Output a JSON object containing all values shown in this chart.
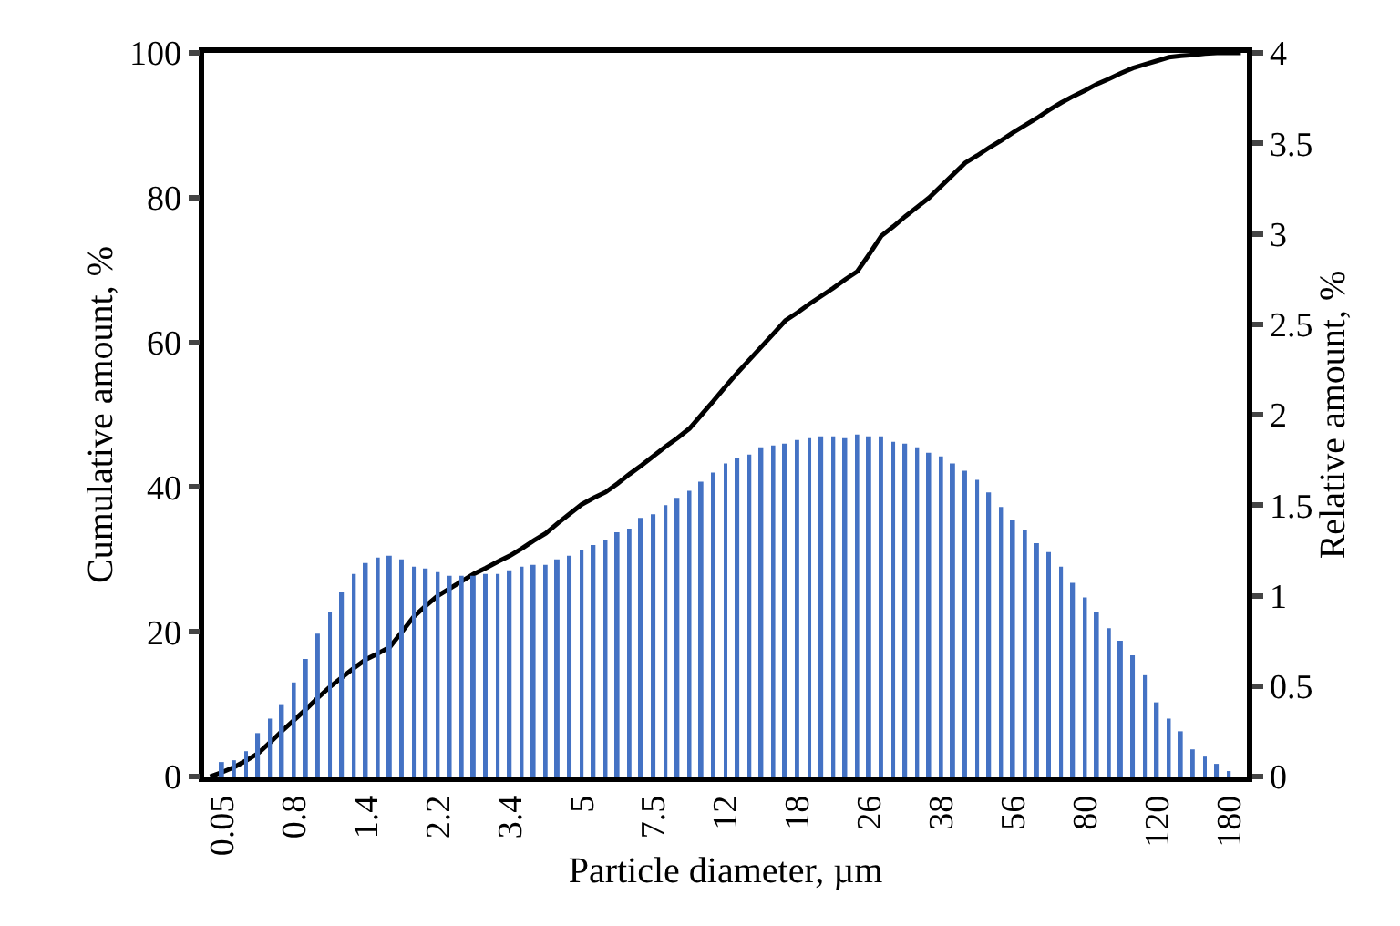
{
  "chart_data": {
    "type": "bar",
    "xlabel": "Particle diameter, µm",
    "ylabel": "Cumulative amount, %",
    "y2label": "Relative amount, %",
    "categories": [
      null,
      "0.05",
      null,
      null,
      null,
      null,
      null,
      "0.8",
      null,
      null,
      null,
      null,
      null,
      "1.4",
      null,
      null,
      null,
      null,
      null,
      "2.2",
      null,
      null,
      null,
      null,
      null,
      "3.4",
      null,
      null,
      null,
      null,
      null,
      "5",
      null,
      null,
      null,
      null,
      null,
      "7.5",
      null,
      null,
      null,
      null,
      null,
      "12",
      null,
      null,
      null,
      null,
      null,
      "18",
      null,
      null,
      null,
      null,
      null,
      "26",
      null,
      null,
      null,
      null,
      null,
      "38",
      null,
      null,
      null,
      null,
      null,
      "56",
      null,
      null,
      null,
      null,
      null,
      "80",
      null,
      null,
      null,
      null,
      null,
      "120",
      null,
      null,
      null,
      null,
      null,
      "180",
      null
    ],
    "series": [
      {
        "axis": "y2",
        "color": "#4472c4",
        "values": [
          0,
          0.08,
          0.09,
          0.14,
          0.24,
          0.32,
          0.4,
          0.52,
          0.65,
          0.79,
          0.91,
          1.02,
          1.12,
          1.18,
          1.21,
          1.22,
          1.2,
          1.16,
          1.15,
          1.13,
          1.11,
          1.11,
          1.11,
          1.12,
          1.12,
          1.14,
          1.16,
          1.17,
          1.17,
          1.2,
          1.22,
          1.25,
          1.28,
          1.31,
          1.35,
          1.37,
          1.43,
          1.45,
          1.5,
          1.54,
          1.58,
          1.63,
          1.68,
          1.73,
          1.76,
          1.78,
          1.82,
          1.83,
          1.84,
          1.86,
          1.87,
          1.88,
          1.88,
          1.87,
          1.89,
          1.88,
          1.88,
          1.85,
          1.84,
          1.82,
          1.79,
          1.77,
          1.73,
          1.69,
          1.64,
          1.57,
          1.49,
          1.42,
          1.36,
          1.29,
          1.24,
          1.16,
          1.07,
          0.99,
          0.91,
          0.82,
          0.75,
          0.67,
          0.56,
          0.41,
          0.32,
          0.25,
          0.15,
          0.11,
          0.07,
          0.03,
          0
        ]
      },
      {
        "type": "line",
        "axis": "y",
        "color": "#000000",
        "values": [
          0,
          0.6,
          1.3,
          2.2,
          3.2,
          4.7,
          6.3,
          7.8,
          9.3,
          10.9,
          12.4,
          13.7,
          15.0,
          16.2,
          17.0,
          17.9,
          20.0,
          22.1,
          23.6,
          25.0,
          26.0,
          27.0,
          28.0,
          28.8,
          29.7,
          30.5,
          31.5,
          32.6,
          33.6,
          35.0,
          36.3,
          37.6,
          38.5,
          39.3,
          40.5,
          41.8,
          43.0,
          44.3,
          45.6,
          46.8,
          48.1,
          50.0,
          51.9,
          53.9,
          55.8,
          57.6,
          59.4,
          61.2,
          63.0,
          64.1,
          65.3,
          66.4,
          67.5,
          68.7,
          69.8,
          72.2,
          74.7,
          76.0,
          77.4,
          78.7,
          80.0,
          81.6,
          83.2,
          84.8,
          85.8,
          86.9,
          87.9,
          89.0,
          90.0,
          91.0,
          92.1,
          93.1,
          94.0,
          94.8,
          95.7,
          96.4,
          97.2,
          97.9,
          98.4,
          98.9,
          99.4,
          99.6,
          99.7,
          99.9,
          100,
          100,
          100
        ]
      }
    ],
    "ylim": [
      0,
      100
    ],
    "yticks": [
      0,
      20,
      40,
      60,
      80,
      100
    ],
    "y2lim": [
      0,
      4
    ],
    "y2ticks": [
      0,
      0.5,
      1,
      1.5,
      2,
      2.5,
      3,
      3.5,
      4
    ],
    "marker": "none",
    "line_style": "solid"
  }
}
